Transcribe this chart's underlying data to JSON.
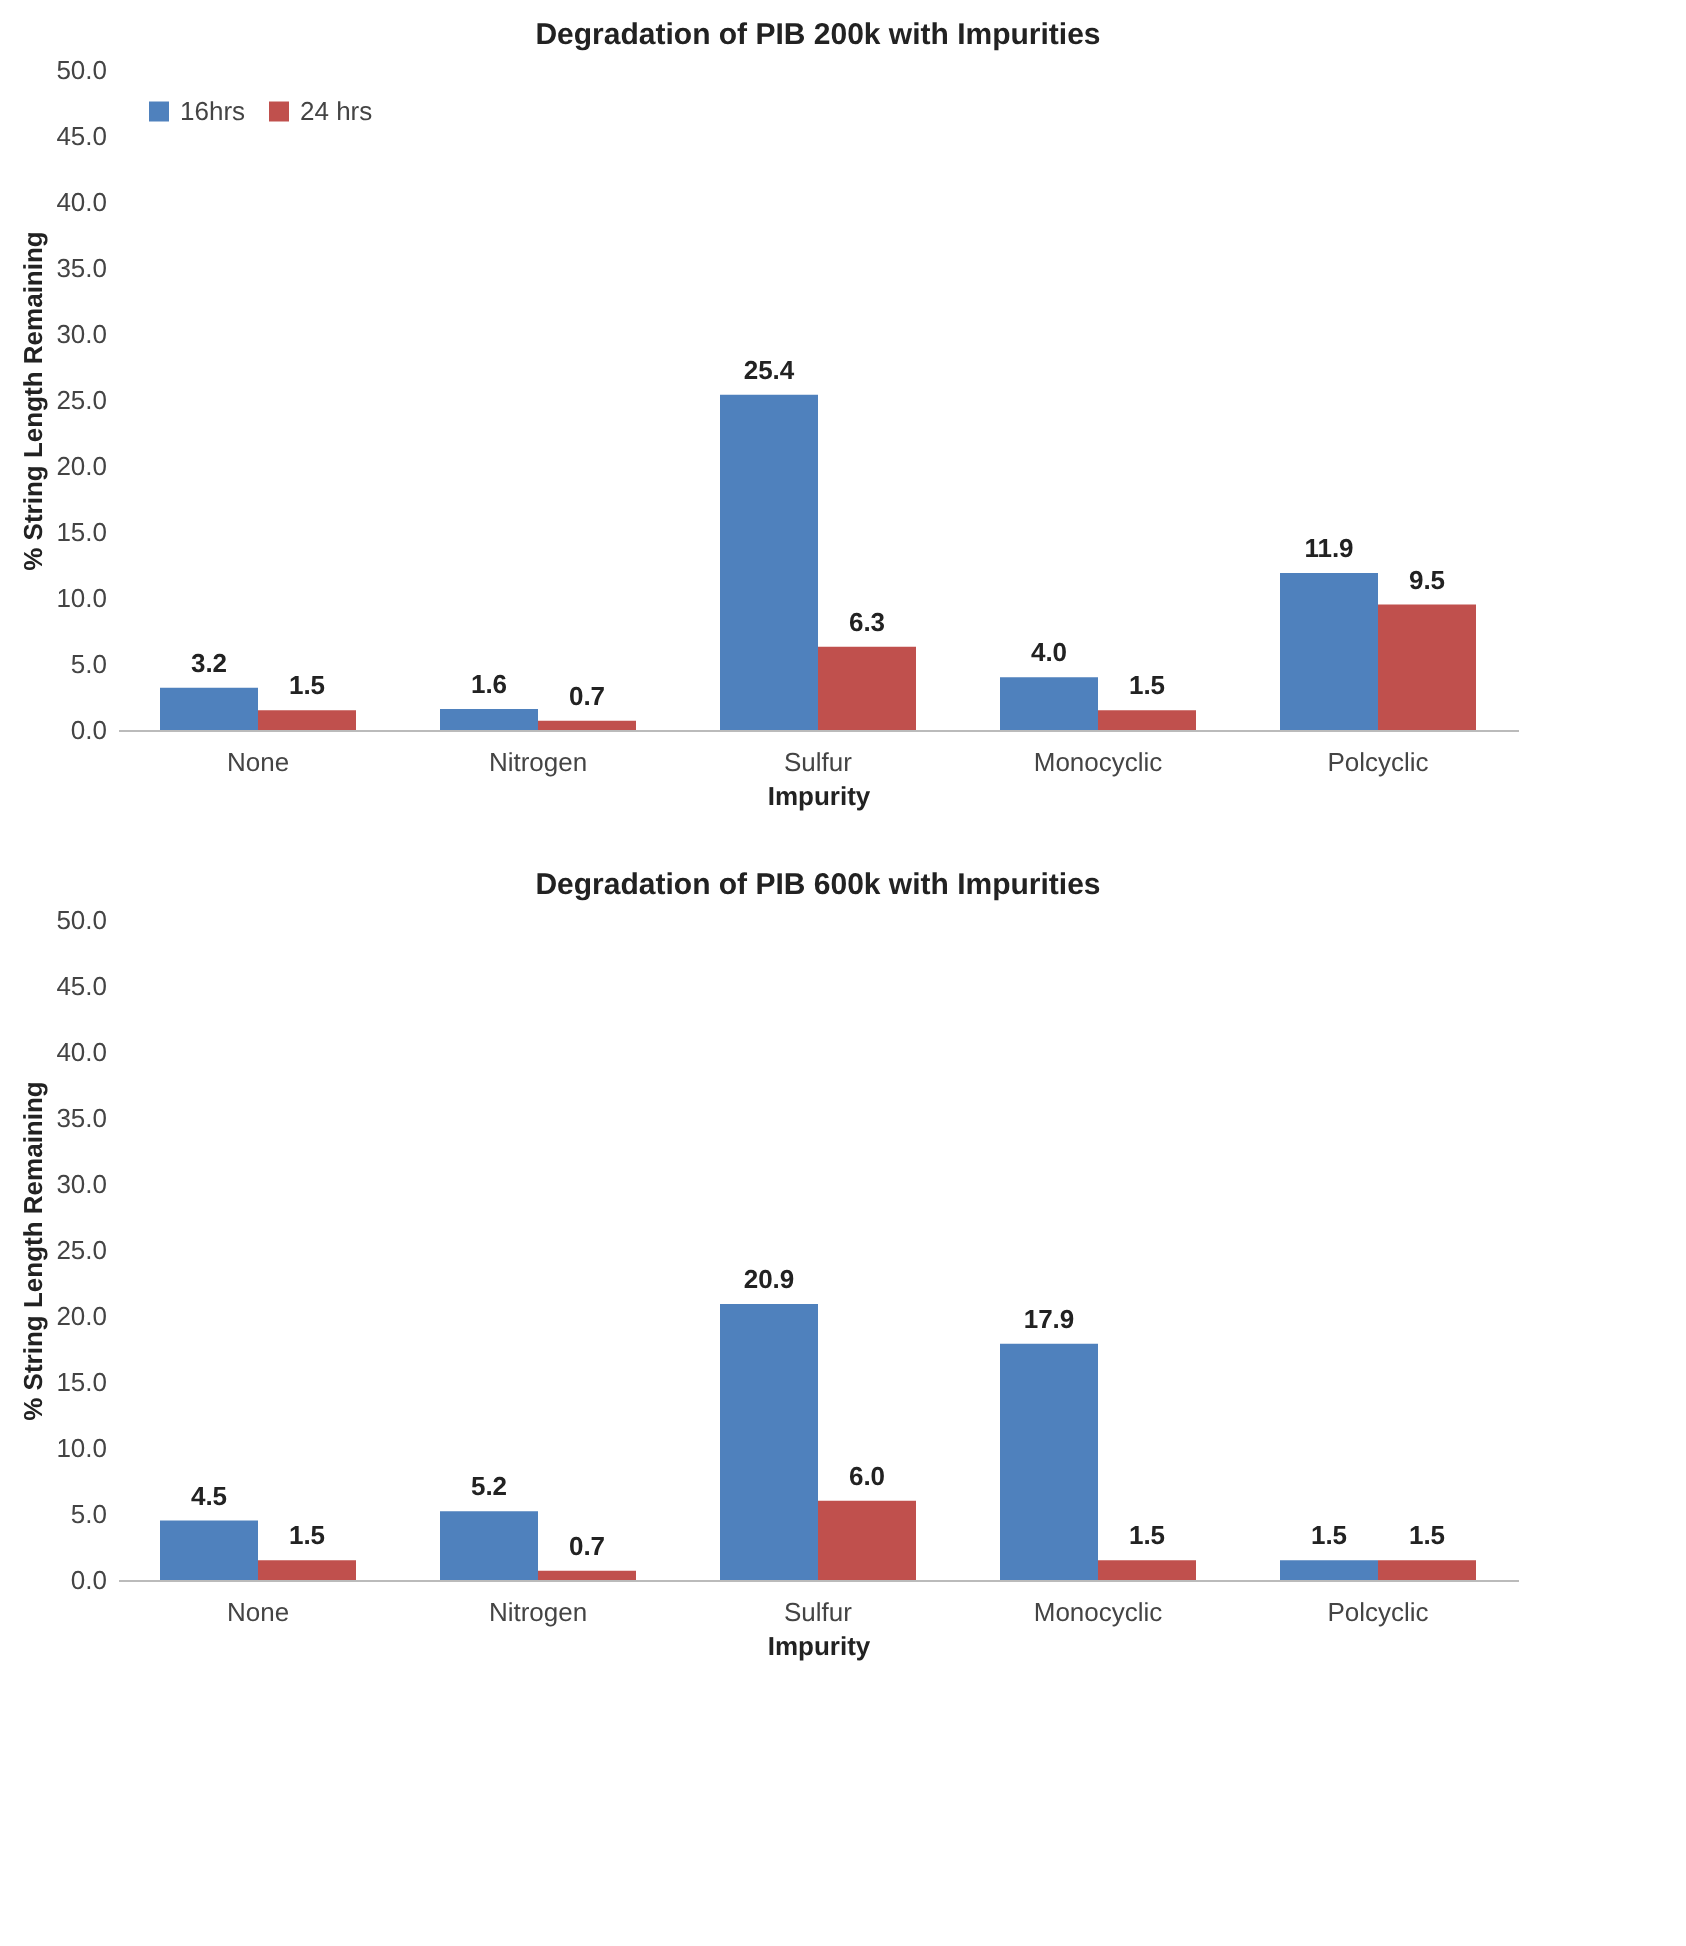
{
  "chart_data": [
    {
      "type": "bar",
      "title": "Degradation of PIB 200k with Impurities",
      "xlabel": "Impurity",
      "ylabel": "% String Length Remaining",
      "categories": [
        "None",
        "Nitrogen",
        "Sulfur",
        "Monocyclic",
        "Polcyclic"
      ],
      "series": [
        {
          "name": "16hrs",
          "color": "#4f81bd",
          "values": [
            3.2,
            1.6,
            25.4,
            4.0,
            11.9
          ],
          "value_labels": [
            "3.2",
            "1.6",
            "25.4",
            "4.0",
            "11.9"
          ]
        },
        {
          "name": "24 hrs",
          "color": "#c0504d",
          "values": [
            1.5,
            0.7,
            6.3,
            1.5,
            9.5
          ],
          "value_labels": [
            "1.5",
            "0.7",
            "6.3",
            "1.5",
            "9.5"
          ]
        }
      ],
      "ylim": [
        0,
        50
      ],
      "yticks": [
        {
          "value": 0,
          "label": "0.0"
        },
        {
          "value": 5,
          "label": "5.0"
        },
        {
          "value": 10,
          "label": "10.0"
        },
        {
          "value": 15,
          "label": "15.0"
        },
        {
          "value": 20,
          "label": "20.0"
        },
        {
          "value": 25,
          "label": "25.0"
        },
        {
          "value": 30,
          "label": "30.0"
        },
        {
          "value": 35,
          "label": "35.0"
        },
        {
          "value": 40,
          "label": "40.0"
        },
        {
          "value": 45,
          "label": "45.0"
        },
        {
          "value": 50,
          "label": "50.0"
        }
      ],
      "grid": false,
      "legend": "top left"
    },
    {
      "type": "bar",
      "title": "Degradation of PIB 600k with Impurities",
      "xlabel": "Impurity",
      "ylabel": "% String Length Remaining",
      "categories": [
        "None",
        "Nitrogen",
        "Sulfur",
        "Monocyclic",
        "Polcyclic"
      ],
      "series": [
        {
          "name": "16hrs",
          "color": "#4f81bd",
          "values": [
            4.5,
            5.2,
            20.9,
            17.9,
            1.5
          ],
          "value_labels": [
            "4.5",
            "5.2",
            "20.9",
            "17.9",
            "1.5"
          ]
        },
        {
          "name": "24 hrs",
          "color": "#c0504d",
          "values": [
            1.5,
            0.7,
            6.0,
            1.5,
            1.5
          ],
          "value_labels": [
            "1.5",
            "0.7",
            "6.0",
            "1.5",
            "1.5"
          ]
        }
      ],
      "ylim": [
        0,
        50
      ],
      "yticks": [
        {
          "value": 0,
          "label": "0.0"
        },
        {
          "value": 5,
          "label": "5.0"
        },
        {
          "value": 10,
          "label": "10.0"
        },
        {
          "value": 15,
          "label": "15.0"
        },
        {
          "value": 20,
          "label": "20.0"
        },
        {
          "value": 25,
          "label": "25.0"
        },
        {
          "value": 30,
          "label": "30.0"
        },
        {
          "value": 35,
          "label": "35.0"
        },
        {
          "value": 40,
          "label": "40.0"
        },
        {
          "value": 45,
          "label": "45.0"
        },
        {
          "value": 50,
          "label": "50.0"
        }
      ],
      "grid": false,
      "legend": "top left"
    }
  ]
}
